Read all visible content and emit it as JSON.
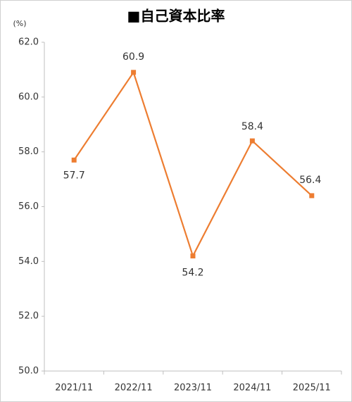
{
  "chart_data": {
    "type": "line",
    "title": "■自己資本比率",
    "y_unit": "(%)",
    "categories": [
      "2021/11",
      "2022/11",
      "2023/11",
      "2024/11",
      "2025/11"
    ],
    "series": [
      {
        "name": "自己資本比率",
        "color": "#ed7d31",
        "values": [
          57.7,
          60.9,
          54.2,
          58.4,
          56.4
        ]
      }
    ],
    "ylim": [
      50,
      62
    ],
    "yticks": [
      {
        "value": 50,
        "label": "50.0"
      },
      {
        "value": 52,
        "label": "52.0"
      },
      {
        "value": 54,
        "label": "54.0"
      },
      {
        "value": 56,
        "label": "56.0"
      },
      {
        "value": 58,
        "label": "58.0"
      },
      {
        "value": 60,
        "label": "60.0"
      },
      {
        "value": 62,
        "label": "62.0"
      }
    ],
    "grid": false,
    "legend": false
  }
}
